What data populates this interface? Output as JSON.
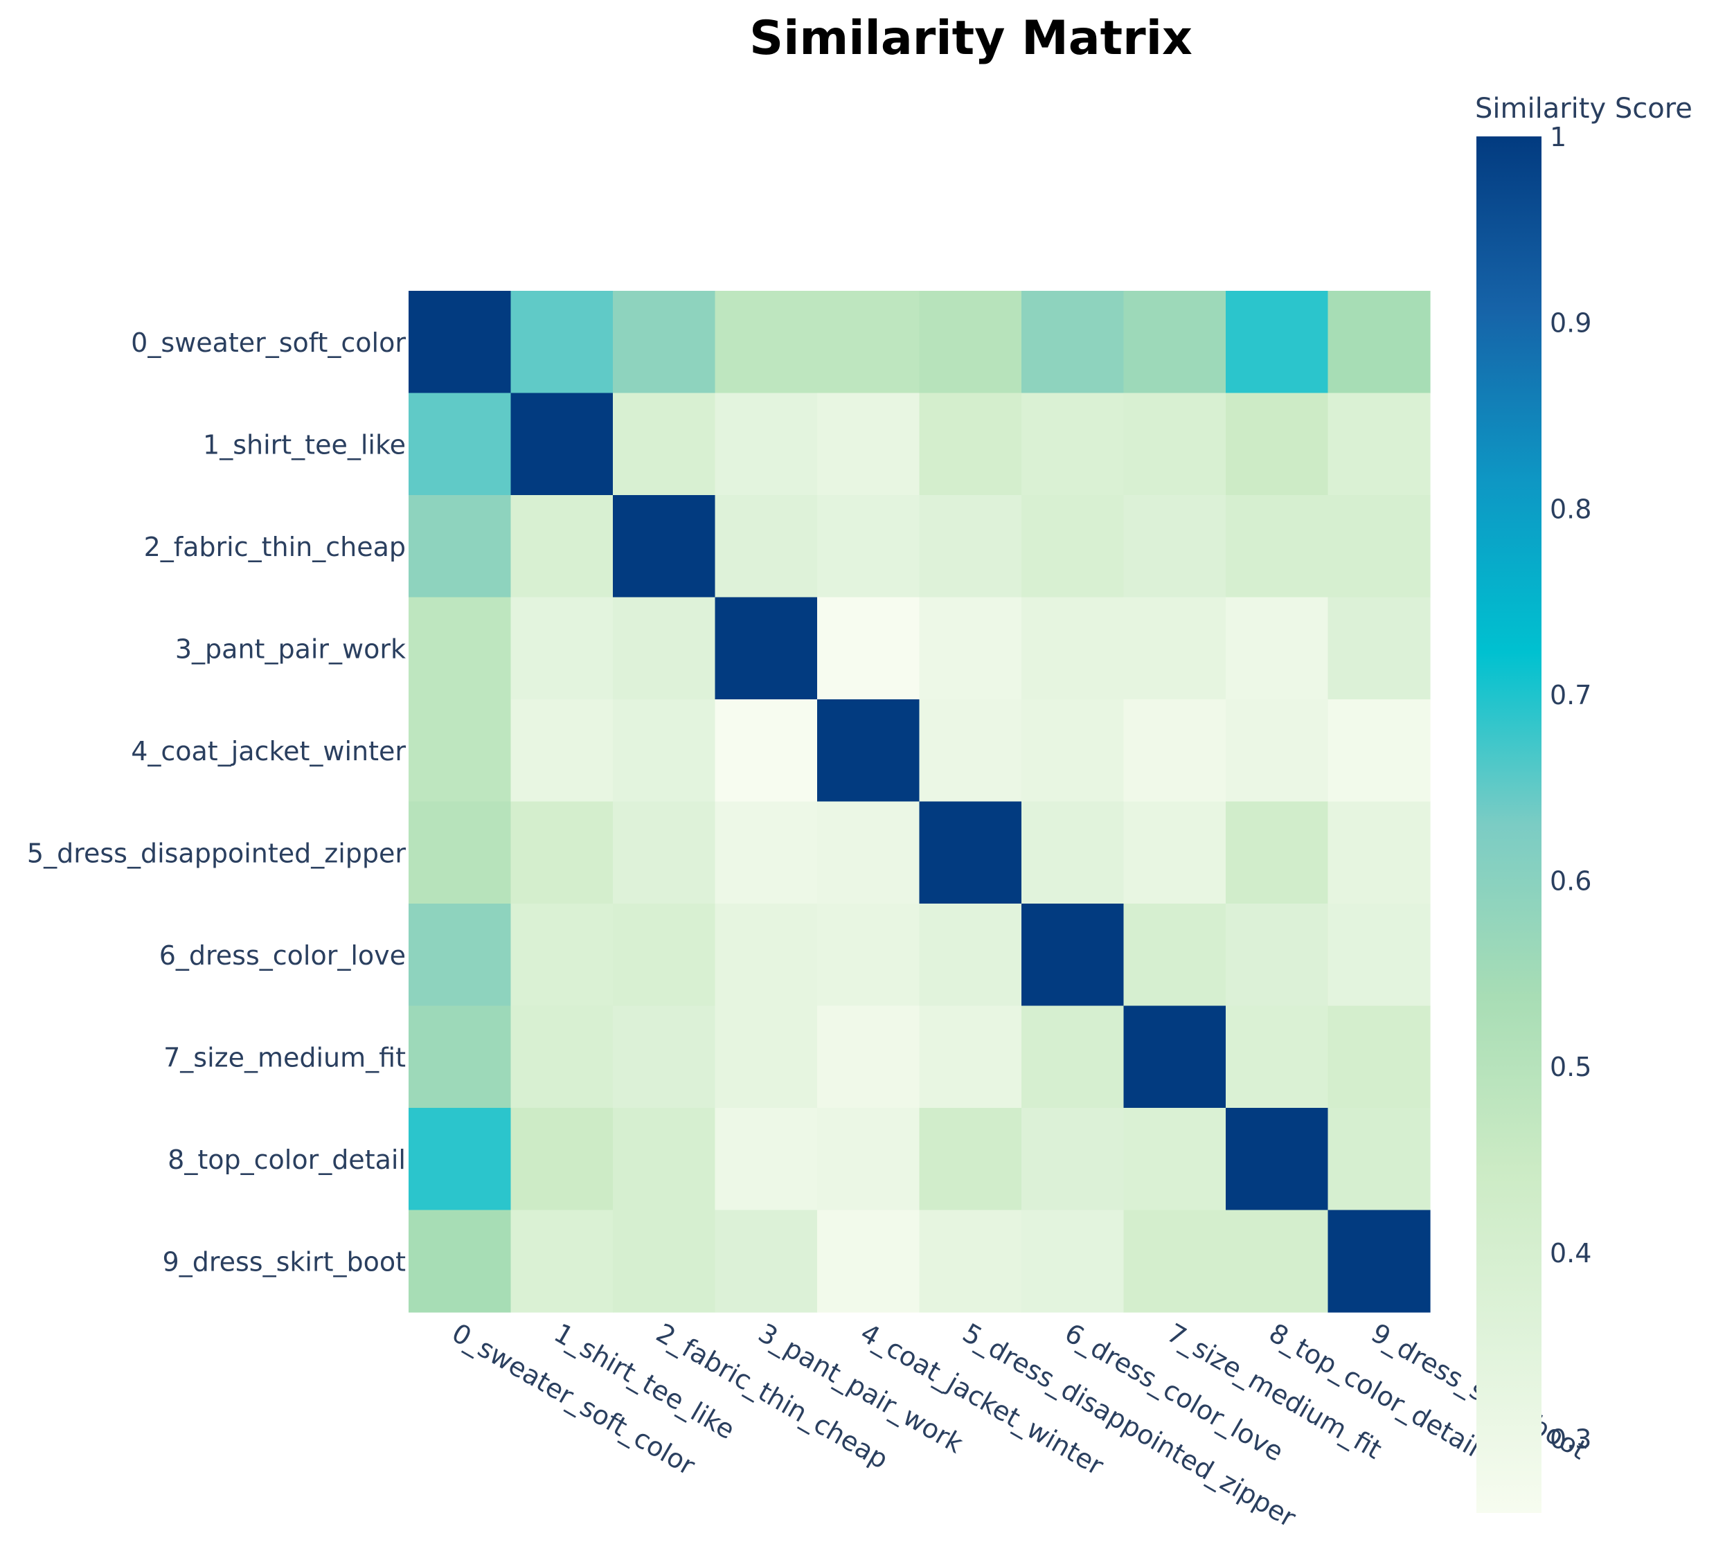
{
  "chart_data": {
    "type": "heatmap",
    "title": "Similarity Matrix",
    "xlabel": "",
    "ylabel": "",
    "categories": [
      "0_sweater_soft_color",
      "1_shirt_tee_like",
      "2_fabric_thin_cheap",
      "3_pant_pair_work",
      "4_coat_jacket_winter",
      "5_dress_disappointed_zipper",
      "6_dress_color_love",
      "7_size_medium_fit",
      "8_top_color_detail",
      "9_dress_skirt_boot"
    ],
    "values": [
      [
        1.0,
        0.65,
        0.59,
        0.48,
        0.48,
        0.5,
        0.59,
        0.56,
        0.69,
        0.54
      ],
      [
        0.65,
        1.0,
        0.39,
        0.34,
        0.32,
        0.41,
        0.38,
        0.39,
        0.44,
        0.38
      ],
      [
        0.59,
        0.39,
        1.0,
        0.36,
        0.34,
        0.36,
        0.39,
        0.37,
        0.4,
        0.4
      ],
      [
        0.48,
        0.34,
        0.36,
        1.0,
        0.26,
        0.3,
        0.33,
        0.33,
        0.3,
        0.37
      ],
      [
        0.48,
        0.32,
        0.34,
        0.26,
        1.0,
        0.31,
        0.32,
        0.29,
        0.31,
        0.28
      ],
      [
        0.5,
        0.41,
        0.36,
        0.3,
        0.31,
        1.0,
        0.35,
        0.32,
        0.42,
        0.33
      ],
      [
        0.59,
        0.38,
        0.39,
        0.33,
        0.32,
        0.35,
        1.0,
        0.4,
        0.37,
        0.34
      ],
      [
        0.56,
        0.39,
        0.37,
        0.33,
        0.29,
        0.32,
        0.4,
        1.0,
        0.38,
        0.41
      ],
      [
        0.69,
        0.44,
        0.4,
        0.3,
        0.31,
        0.42,
        0.37,
        0.38,
        1.0,
        0.4
      ],
      [
        0.54,
        0.38,
        0.4,
        0.37,
        0.28,
        0.33,
        0.34,
        0.41,
        0.41,
        1.0
      ]
    ],
    "zmin": 0.26,
    "zmax": 1.0,
    "colorscale_name": "GnBu",
    "colorscale": [
      [
        0.0,
        "#f7fcf0"
      ],
      [
        0.125,
        "#e0f3db"
      ],
      [
        0.25,
        "#ccebc5"
      ],
      [
        0.375,
        "#a8ddb5"
      ],
      [
        0.5,
        "#7bccc4"
      ],
      [
        0.625,
        "#00c1d0"
      ],
      [
        0.75,
        "#0e97c4"
      ],
      [
        0.875,
        "#1663a8"
      ],
      [
        1.0,
        "#023b80"
      ]
    ],
    "colorbar": {
      "title": "Similarity Score",
      "tickvals": [
        1,
        0.9,
        0.8,
        0.7,
        0.6,
        0.5,
        0.4,
        0.3
      ],
      "ticktext": [
        "1",
        "0.9",
        "0.8",
        "0.7",
        "0.6",
        "0.5",
        "0.4",
        "0.3"
      ]
    }
  }
}
